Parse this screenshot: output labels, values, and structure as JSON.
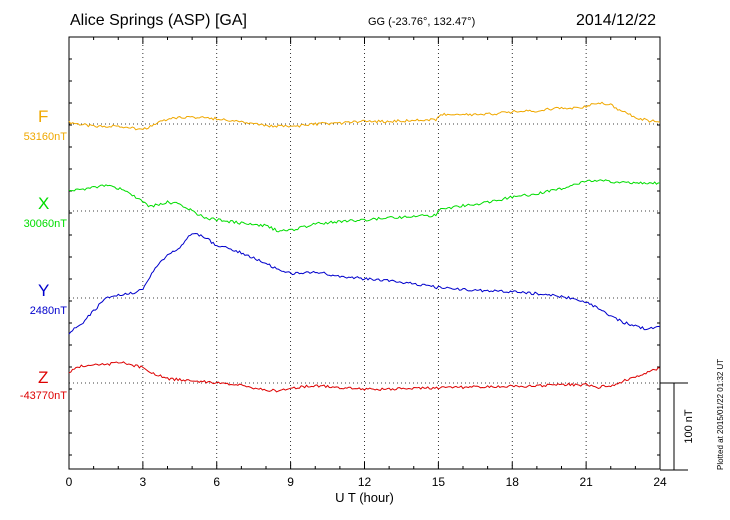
{
  "header": {
    "station": "Alice Springs (ASP)  [GA]",
    "coords": "GG (-23.76°, 132.47°)",
    "date": "2014/12/22"
  },
  "credit": "Plotted at 2015/01/22 01:32 UT",
  "colors": {
    "F": "#f0a800",
    "X": "#00dd00",
    "Y": "#0000cc",
    "Z": "#dd0000",
    "grid": "#000000"
  },
  "chart_data": {
    "type": "line",
    "xlabel": "U T (hour)",
    "xlim": [
      0,
      24
    ],
    "xticks": [
      "0",
      "3",
      "6",
      "9",
      "12",
      "15",
      "18",
      "21",
      "24"
    ],
    "scale_bar_label": "100 nT",
    "series": [
      {
        "name": "F",
        "baseline_label": "53160nT",
        "color": "#f0a800",
        "x": [
          0,
          1,
          2,
          3,
          3.3,
          4,
          5,
          6,
          7,
          8,
          9,
          10,
          11,
          12,
          13,
          14,
          14.9,
          15.1,
          16,
          17,
          18,
          19,
          20,
          20.5,
          21,
          21.5,
          22,
          22.5,
          23,
          23.5,
          24
        ],
        "y": [
          2,
          -3,
          -2,
          -7,
          -2,
          6,
          8,
          6,
          2,
          -2,
          -3,
          0,
          1,
          3,
          3,
          4,
          5,
          11,
          11,
          11,
          14,
          15,
          19,
          18,
          20,
          25,
          22,
          14,
          8,
          4,
          2
        ]
      },
      {
        "name": "X",
        "baseline_label": "30060nT",
        "color": "#00dd00",
        "x": [
          0,
          1,
          1.5,
          2,
          2.5,
          3,
          3.3,
          4,
          4.5,
          5,
          5.5,
          6,
          6.5,
          7,
          7.5,
          8,
          8.5,
          9,
          10,
          11,
          12,
          13,
          14,
          14.9,
          15.1,
          16,
          17,
          18,
          19,
          20,
          20.5,
          21,
          21.5,
          22,
          23,
          24
        ],
        "y": [
          23,
          27,
          30,
          26,
          20,
          10,
          5,
          10,
          8,
          0,
          -8,
          -10,
          -12,
          -14,
          -16,
          -17,
          -23,
          -22,
          -15,
          -12,
          -10,
          -8,
          -6,
          -5,
          2,
          6,
          10,
          16,
          20,
          26,
          30,
          34,
          36,
          33,
          32,
          32
        ]
      },
      {
        "name": "Y",
        "baseline_label": "2480nT",
        "color": "#0000cc",
        "x": [
          0,
          0.5,
          1,
          1.5,
          2,
          2.5,
          3,
          3.5,
          4,
          4.5,
          5,
          5.5,
          6,
          6.5,
          7,
          7.5,
          8,
          8.5,
          9,
          10,
          11,
          12,
          13,
          14,
          15,
          16,
          17,
          18,
          19,
          20,
          21,
          21.5,
          22,
          22.5,
          23,
          23.5,
          24
        ],
        "y": [
          -40,
          -30,
          -15,
          0,
          3,
          5,
          10,
          35,
          50,
          57,
          75,
          70,
          60,
          57,
          52,
          46,
          40,
          33,
          28,
          30,
          25,
          22,
          20,
          16,
          12,
          10,
          8,
          7,
          5,
          2,
          -5,
          -12,
          -20,
          -28,
          -32,
          -36,
          -33
        ]
      },
      {
        "name": "Z",
        "baseline_label": "-43770nT",
        "color": "#dd0000",
        "x": [
          0,
          0.5,
          1,
          1.5,
          2,
          2.5,
          3,
          3.5,
          4,
          5,
          6,
          7,
          8,
          8.5,
          9,
          10,
          11,
          12,
          13,
          14,
          15,
          16,
          17,
          18,
          19,
          20,
          21,
          21.5,
          22,
          22.5,
          23,
          23.5,
          24
        ],
        "y": [
          12,
          20,
          21,
          21,
          24,
          21,
          18,
          10,
          5,
          3,
          0,
          -3,
          -8,
          -9,
          -6,
          -3,
          -5,
          -7,
          -7,
          -6,
          -6,
          -5,
          -4,
          -4,
          -3,
          -2,
          -2,
          -5,
          -3,
          2,
          8,
          12,
          17
        ]
      }
    ]
  }
}
